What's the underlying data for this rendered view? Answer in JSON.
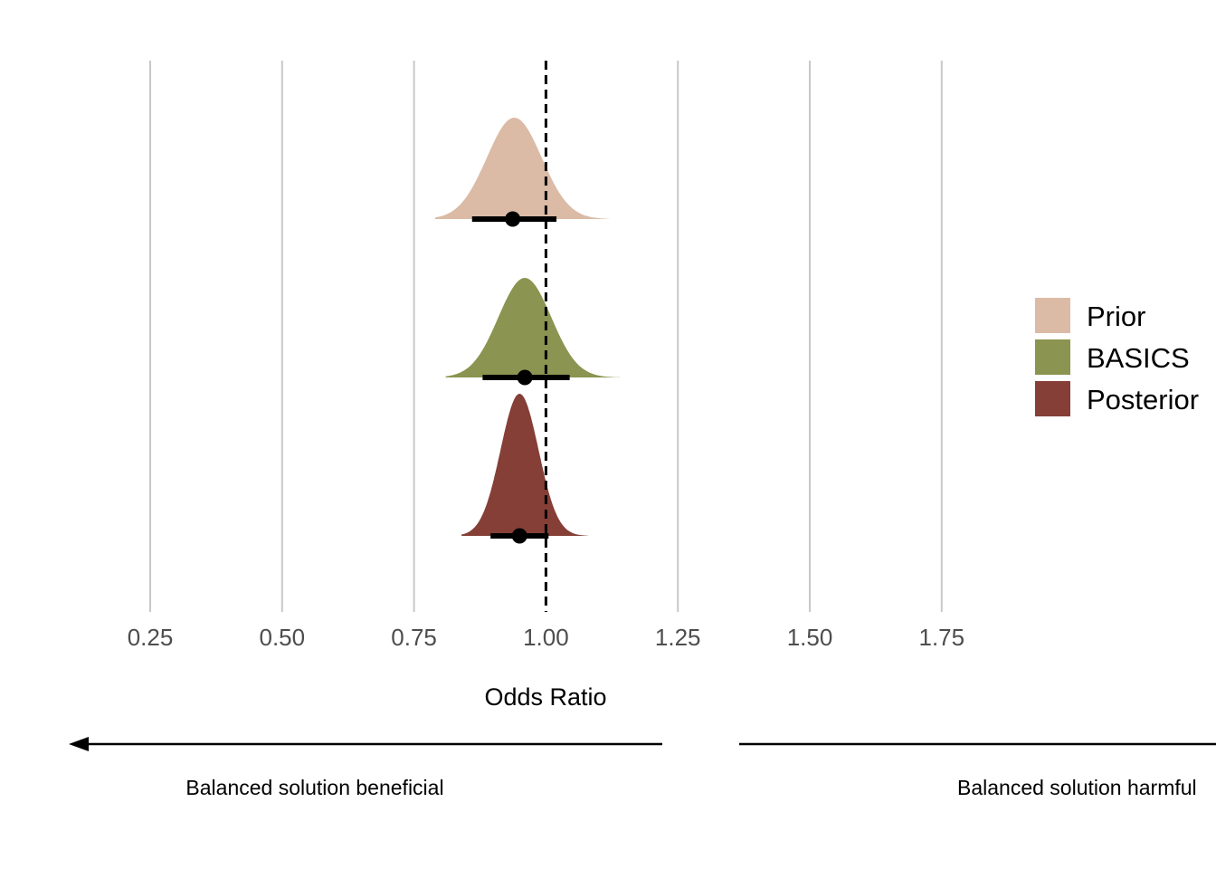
{
  "chart_data": {
    "type": "area",
    "title": "",
    "xlabel": "Odds Ratio",
    "ylabel": "",
    "xlim": [
      0.0,
      2.22
    ],
    "x_ticks": [
      0.25,
      0.5,
      0.75,
      1.0,
      1.25,
      1.5,
      1.75
    ],
    "x_tick_labels": [
      "0.25",
      "0.50",
      "0.75",
      "1.00",
      "1.25",
      "1.50",
      "1.75"
    ],
    "grid": "vertical-major",
    "reference_line": {
      "x": 1.0,
      "style": "dashed"
    },
    "legend_position": "right",
    "series": [
      {
        "name": "Prior",
        "color": "#dbbba6",
        "mode": 0.94,
        "median": 0.937,
        "interval": [
          0.86,
          1.02
        ],
        "spread": 0.052,
        "tail_range": [
          0.79,
          1.12
        ]
      },
      {
        "name": "BASICS",
        "color": "#8b9450",
        "mode": 0.96,
        "median": 0.96,
        "interval": [
          0.88,
          1.045
        ],
        "spread": 0.05,
        "tail_range": [
          0.81,
          1.14
        ]
      },
      {
        "name": "Posterior",
        "color": "#853f37",
        "mode": 0.95,
        "median": 0.95,
        "interval": [
          0.895,
          1.005
        ],
        "spread": 0.036,
        "tail_range": [
          0.84,
          1.08
        ]
      }
    ],
    "annotations": {
      "left_label": "Balanced solution beneficial",
      "right_label": "Balanced solution harmful"
    }
  }
}
